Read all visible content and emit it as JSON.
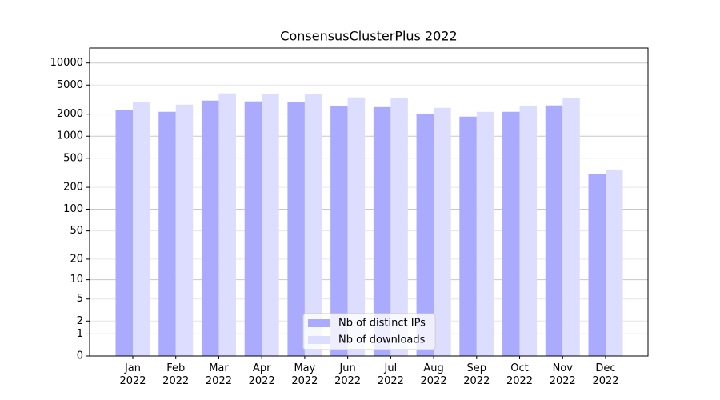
{
  "chart_data": {
    "type": "bar",
    "title": "ConsensusClusterPlus 2022",
    "categories": [
      "Jan\n2022",
      "Feb\n2022",
      "Mar\n2022",
      "Apr\n2022",
      "May\n2022",
      "Jun\n2022",
      "Jul\n2022",
      "Aug\n2022",
      "Sep\n2022",
      "Oct\n2022",
      "Nov\n2022",
      "Dec\n2022"
    ],
    "series": [
      {
        "name": "Nb of distinct IPs",
        "color": "#aaaaff",
        "values": [
          2265,
          2153,
          3063,
          2990,
          2912,
          2570,
          2500,
          2000,
          1853,
          2153,
          2635,
          302
        ]
      },
      {
        "name": "Nb of downloads",
        "color": "#ddddff",
        "values": [
          2912,
          2700,
          3845,
          3750,
          3750,
          3390,
          3300,
          2443,
          2150,
          2570,
          3300,
          350
        ]
      }
    ],
    "yscale": "log1p",
    "ylim": [
      0,
      16000
    ],
    "yticks": [
      0,
      1,
      2,
      5,
      10,
      20,
      50,
      100,
      200,
      500,
      1000,
      2000,
      5000,
      10000
    ],
    "grid": true,
    "legend": "lower center"
  }
}
